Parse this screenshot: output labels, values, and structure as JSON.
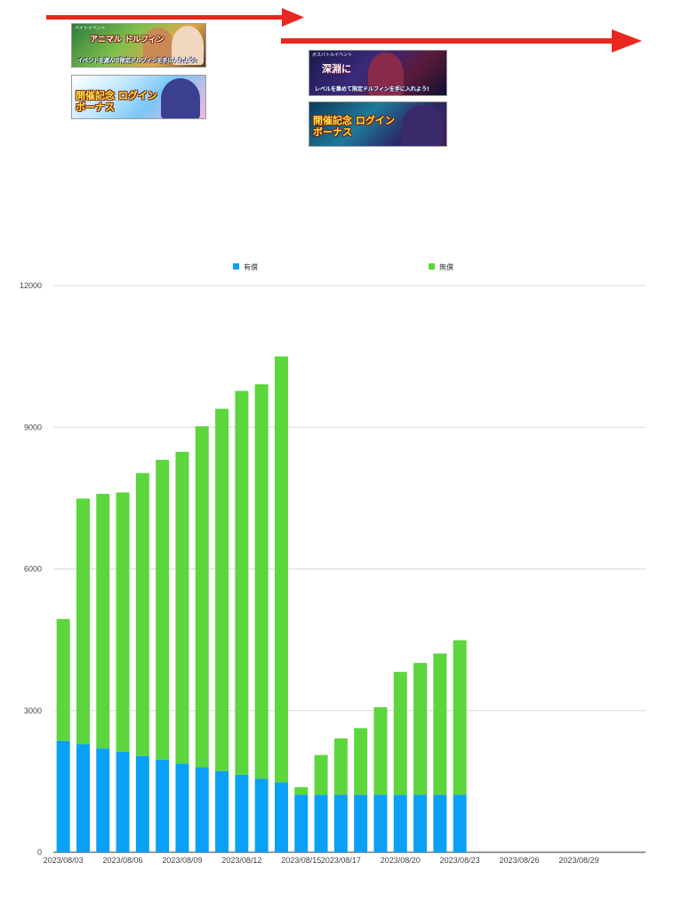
{
  "banners": [
    {
      "tag": "ベイトイベント",
      "title": "アニマル ドルフィン",
      "subtitle": "イベントを遊んで限定ドルフィンを手に入れよう!"
    },
    {
      "tag": "",
      "title": "開催記念 ログインボーナス",
      "subtitle": ""
    },
    {
      "tag": "ボスバトルイベント",
      "title": "深淵に",
      "subtitle": "レベルを集めて限定ドルフィンを手に入れよう!"
    },
    {
      "tag": "",
      "title": "開催記念 ログインボーナス",
      "subtitle": ""
    }
  ],
  "colors": {
    "arrow": "#e8281e",
    "paid": "#0aa0f5",
    "free": "#5cd63c",
    "grid": "#d9d9d9",
    "axis": "#333333",
    "tick_text": "#444444"
  },
  "chart_data": {
    "type": "bar",
    "stacked": true,
    "legend_position": "top",
    "grid": true,
    "x_tick_labels": [
      "2023/08/03",
      "2023/08/06",
      "2023/08/09",
      "2023/08/12",
      "2023/08/15",
      "2023/08/17",
      "2023/08/20",
      "2023/08/23",
      "2023/08/26",
      "2023/08/29"
    ],
    "y_tick_labels": [
      "0",
      "3000",
      "6000",
      "9000",
      "12000"
    ],
    "ylim": [
      0,
      12000
    ],
    "categories": [
      "2023/08/03",
      "2023/08/04",
      "2023/08/05",
      "2023/08/06",
      "2023/08/07",
      "2023/08/08",
      "2023/08/09",
      "2023/08/10",
      "2023/08/11",
      "2023/08/12",
      "2023/08/13",
      "2023/08/14",
      "2023/08/15",
      "2023/08/16",
      "2023/08/17",
      "2023/08/18",
      "2023/08/19",
      "2023/08/20",
      "2023/08/21",
      "2023/08/22",
      "2023/08/23",
      "2023/08/24",
      "2023/08/25",
      "2023/08/26",
      "2023/08/27",
      "2023/08/28",
      "2023/08/29",
      "2023/08/30",
      "2023/08/31"
    ],
    "series": [
      {
        "name": "有償",
        "values": [
          2360,
          2290,
          2200,
          2130,
          2040,
          1960,
          1880,
          1800,
          1720,
          1640,
          1560,
          1480,
          1220,
          1220,
          1220,
          1220,
          1220,
          1220,
          1220,
          1220,
          1220,
          null,
          null,
          null,
          null,
          null,
          null,
          null,
          null
        ]
      },
      {
        "name": "無償",
        "values": [
          2580,
          5200,
          5390,
          5490,
          5990,
          6350,
          6600,
          7220,
          7670,
          8130,
          8350,
          9020,
          160,
          840,
          1190,
          1410,
          1850,
          2600,
          2790,
          2990,
          3270,
          null,
          null,
          null,
          null,
          null,
          null,
          null,
          null
        ]
      }
    ]
  }
}
